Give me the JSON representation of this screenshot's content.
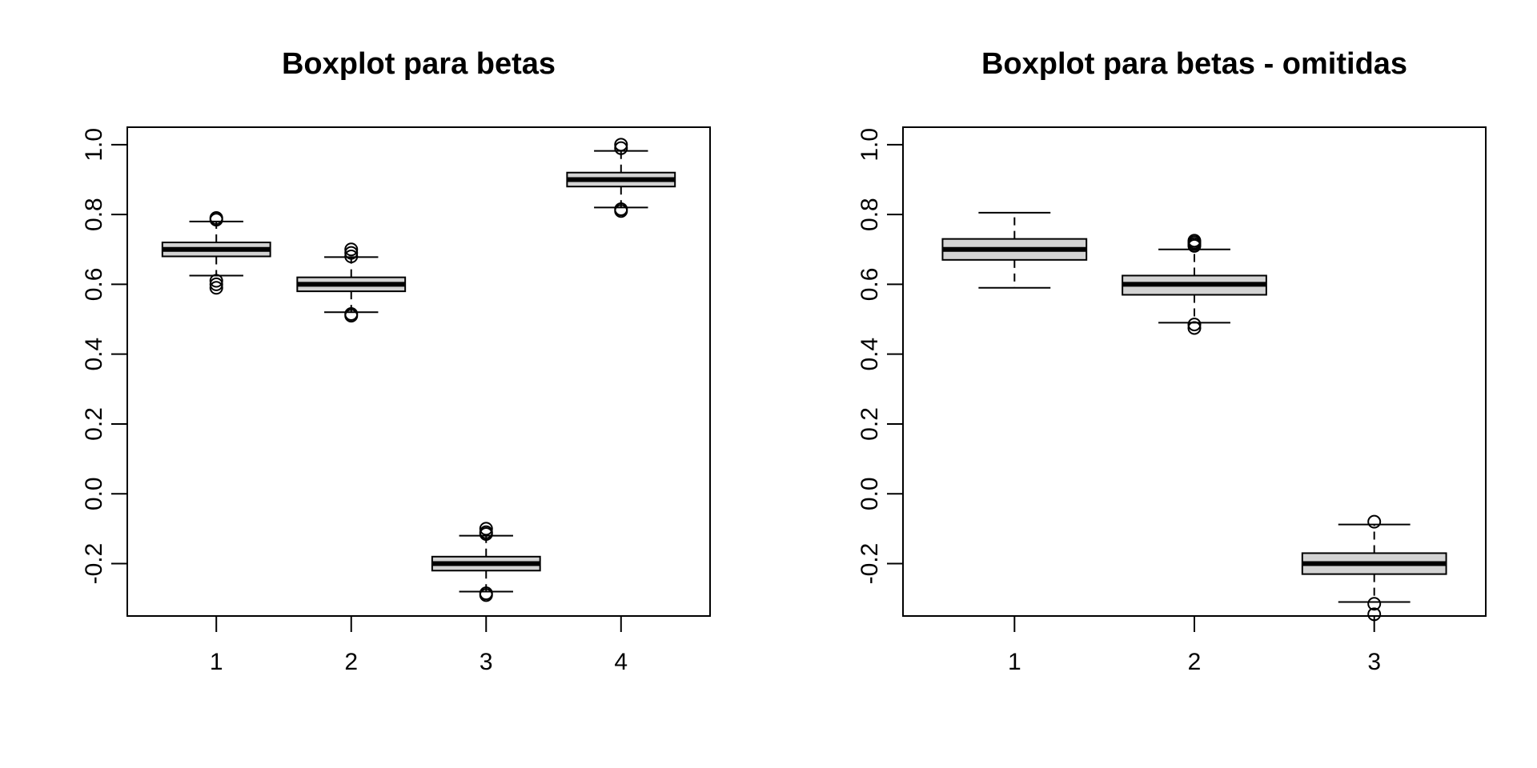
{
  "chart_data": [
    {
      "type": "boxplot",
      "title": "Boxplot para betas",
      "xlabel": "",
      "ylabel": "",
      "categories": [
        "1",
        "2",
        "3",
        "4"
      ],
      "ylim": [
        -0.35,
        1.05
      ],
      "yticks": [
        -0.2,
        0.0,
        0.2,
        0.4,
        0.6,
        0.8,
        1.0
      ],
      "ytick_labels": [
        "-0.2",
        "0.0",
        "0.2",
        "0.4",
        "0.6",
        "0.8",
        "1.0"
      ],
      "boxes": [
        {
          "category": "1",
          "whisker_low": 0.625,
          "q1": 0.68,
          "median": 0.7,
          "q3": 0.72,
          "whisker_high": 0.78,
          "outliers": [
            0.59,
            0.6,
            0.61,
            0.785,
            0.79
          ]
        },
        {
          "category": "2",
          "whisker_low": 0.52,
          "q1": 0.58,
          "median": 0.6,
          "q3": 0.62,
          "whisker_high": 0.678,
          "outliers": [
            0.51,
            0.515,
            0.68,
            0.69,
            0.7
          ]
        },
        {
          "category": "3",
          "whisker_low": -0.28,
          "q1": -0.22,
          "median": -0.2,
          "q3": -0.18,
          "whisker_high": -0.12,
          "outliers": [
            -0.29,
            -0.285,
            -0.115,
            -0.11,
            -0.1
          ]
        },
        {
          "category": "4",
          "whisker_low": 0.82,
          "q1": 0.88,
          "median": 0.9,
          "q3": 0.92,
          "whisker_high": 0.982,
          "outliers": [
            0.81,
            0.815,
            0.99,
            1.0
          ]
        }
      ]
    },
    {
      "type": "boxplot",
      "title": "Boxplot para betas - omitidas",
      "xlabel": "",
      "ylabel": "",
      "categories": [
        "1",
        "2",
        "3"
      ],
      "ylim": [
        -0.35,
        1.05
      ],
      "yticks": [
        -0.2,
        0.0,
        0.2,
        0.4,
        0.6,
        0.8,
        1.0
      ],
      "ytick_labels": [
        "-0.2",
        "0.0",
        "0.2",
        "0.4",
        "0.6",
        "0.8",
        "1.0"
      ],
      "boxes": [
        {
          "category": "1",
          "whisker_low": 0.59,
          "q1": 0.67,
          "median": 0.7,
          "q3": 0.73,
          "whisker_high": 0.805,
          "outliers": []
        },
        {
          "category": "2",
          "whisker_low": 0.49,
          "q1": 0.57,
          "median": 0.6,
          "q3": 0.625,
          "whisker_high": 0.7,
          "outliers": [
            0.475,
            0.485,
            0.71,
            0.715,
            0.72,
            0.725
          ]
        },
        {
          "category": "3",
          "whisker_low": -0.31,
          "q1": -0.23,
          "median": -0.2,
          "q3": -0.17,
          "whisker_high": -0.088,
          "outliers": [
            -0.345,
            -0.315,
            -0.08
          ]
        }
      ]
    }
  ]
}
